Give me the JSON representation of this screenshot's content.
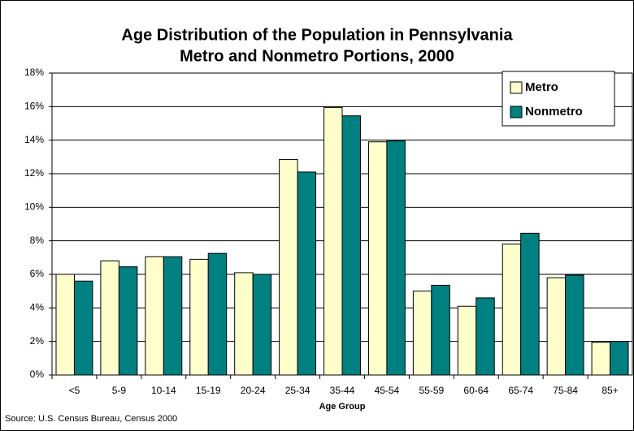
{
  "chart_data": {
    "type": "bar",
    "title": [
      "Age Distribution of the Population in Pennsylvania",
      "Metro and Nonmetro Portions, 2000"
    ],
    "x_label": "Age Group",
    "source": "Source: U.S. Census Bureau, Census 2000",
    "categories": [
      "<5",
      "5-9",
      "10-14",
      "15-19",
      "20-24",
      "25-34",
      "35-44",
      "45-54",
      "55-59",
      "60-64",
      "65-74",
      "75-84",
      "85+"
    ],
    "series": [
      {
        "name": "Metro",
        "color": "#ffffcc",
        "values": [
          6.0,
          6.8,
          7.05,
          6.9,
          6.1,
          12.85,
          15.95,
          13.9,
          5.0,
          4.1,
          7.8,
          5.8,
          1.95
        ]
      },
      {
        "name": "Nonmetro",
        "color": "#008080",
        "values": [
          5.6,
          6.45,
          7.05,
          7.25,
          6.0,
          12.1,
          15.45,
          13.95,
          5.35,
          4.6,
          8.45,
          5.95,
          2.0
        ]
      }
    ],
    "ylim": [
      0,
      18
    ],
    "yticks": [
      {
        "value": 0,
        "label": "0%"
      },
      {
        "value": 2,
        "label": "2%"
      },
      {
        "value": 4,
        "label": "4%"
      },
      {
        "value": 6,
        "label": "6%"
      },
      {
        "value": 8,
        "label": "8%"
      },
      {
        "value": 10,
        "label": "10%"
      },
      {
        "value": 12,
        "label": "12%"
      },
      {
        "value": 14,
        "label": "14%"
      },
      {
        "value": 16,
        "label": "16%"
      },
      {
        "value": 18,
        "label": "18%"
      }
    ],
    "grid": true,
    "legend": "top-right"
  }
}
